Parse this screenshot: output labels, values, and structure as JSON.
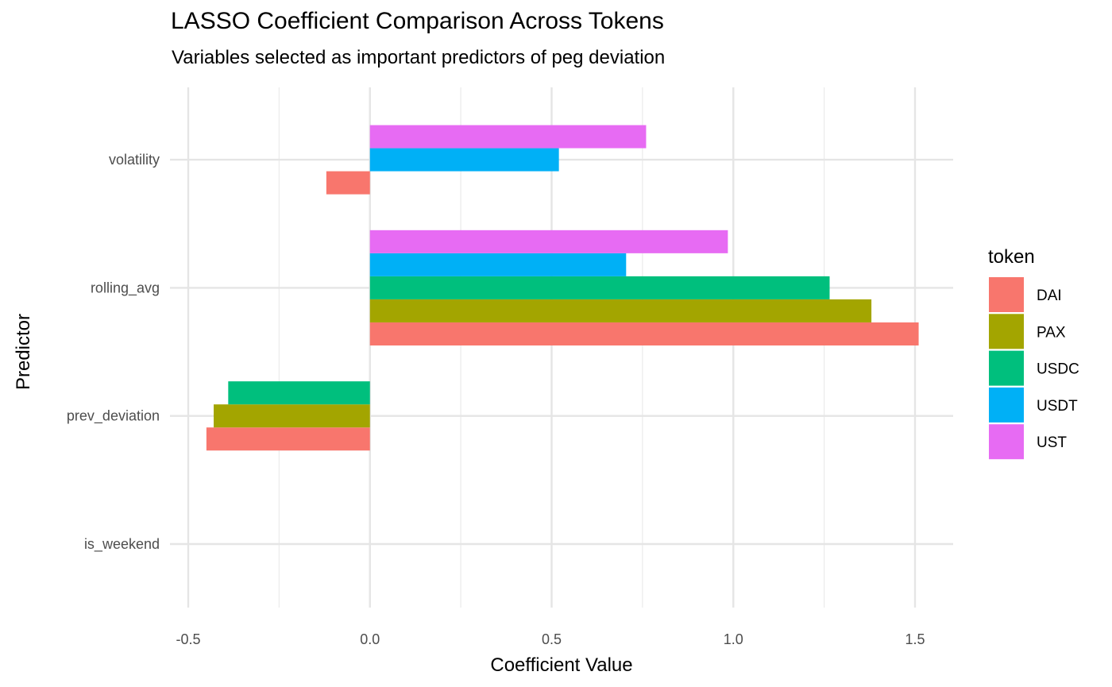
{
  "chart_data": {
    "type": "bar",
    "orientation": "horizontal",
    "title": "LASSO Coefficient Comparison Across Tokens",
    "subtitle": "Variables selected as important predictors of peg deviation",
    "xlabel": "Coefficient Value",
    "ylabel": "Predictor",
    "xlim": [
      -0.5,
      1.5
    ],
    "xticks": [
      "-0.5",
      "0.0",
      "0.5",
      "1.0",
      "1.5"
    ],
    "xtick_values": [
      -0.5,
      0.0,
      0.5,
      1.0,
      1.5
    ],
    "categories": [
      "is_weekend",
      "prev_deviation",
      "rolling_avg",
      "volatility"
    ],
    "legend": {
      "title": "token",
      "position": "right"
    },
    "grid": true,
    "series": [
      {
        "name": "DAI",
        "color": "#F8766D",
        "values": [
          null,
          -0.45,
          1.51,
          -0.12
        ]
      },
      {
        "name": "PAX",
        "color": "#A3A500",
        "values": [
          null,
          -0.43,
          1.38,
          null
        ]
      },
      {
        "name": "USDC",
        "color": "#00BF7D",
        "values": [
          null,
          -0.39,
          1.265,
          null
        ]
      },
      {
        "name": "USDT",
        "color": "#00B0F6",
        "values": [
          null,
          null,
          0.705,
          0.52
        ]
      },
      {
        "name": "UST",
        "color": "#E76BF3",
        "values": [
          null,
          null,
          0.985,
          0.76
        ]
      }
    ]
  }
}
